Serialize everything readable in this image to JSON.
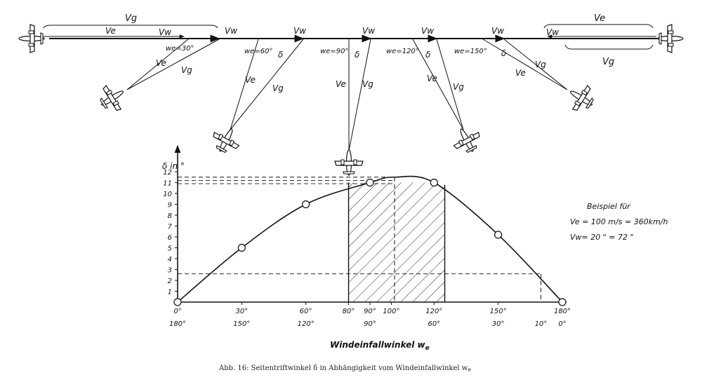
{
  "chart_data": {
    "type": "line",
    "ylabel": "δ in °",
    "xlabel": "Windeinfallwinkel w",
    "xlabel_sub": "e",
    "caption": "Abb. 16: Seitentriftwinkel δ in Abhängigkeit vom Windeinfallwinkel w",
    "caption_sub": "e",
    "xlim": [
      0,
      180
    ],
    "ylim": [
      0,
      12.5
    ],
    "y_ticks": [
      "1",
      "2",
      "3",
      "4",
      "5",
      "6",
      "7",
      "8",
      "9",
      "10",
      "11",
      "12"
    ],
    "x_ticks_top": [
      {
        "v": 0,
        "t": "0°"
      },
      {
        "v": 30,
        "t": "30°"
      },
      {
        "v": 60,
        "t": "60°"
      },
      {
        "v": 80,
        "t": "80°"
      },
      {
        "v": 90,
        "t": "90°"
      },
      {
        "v": 100,
        "t": "100°"
      },
      {
        "v": 120,
        "t": "120°"
      },
      {
        "v": 150,
        "t": "150°"
      },
      {
        "v": 180,
        "t": "180°"
      }
    ],
    "x_ticks_bottom": [
      {
        "v": 0,
        "t": "180°"
      },
      {
        "v": 30,
        "t": "150°"
      },
      {
        "v": 60,
        "t": "120°"
      },
      {
        "v": 90,
        "t": "90°"
      },
      {
        "v": 120,
        "t": "60°"
      },
      {
        "v": 150,
        "t": "30°"
      },
      {
        "v": 170,
        "t": "10°"
      },
      {
        "v": 180,
        "t": "0°"
      }
    ],
    "series": [
      {
        "x": [
          0,
          30,
          60,
          90,
          101.5,
          120,
          150,
          180
        ],
        "y": [
          0,
          5.0,
          9.0,
          11.0,
          11.5,
          11.0,
          6.2,
          0
        ]
      }
    ],
    "markers": [
      {
        "x": 0,
        "y": 0
      },
      {
        "x": 30,
        "y": 5.0
      },
      {
        "x": 60,
        "y": 9.0
      },
      {
        "x": 90,
        "y": 11.0
      },
      {
        "x": 120,
        "y": 11.0
      },
      {
        "x": 150,
        "y": 6.2
      },
      {
        "x": 180,
        "y": 0
      }
    ],
    "hatched_range": [
      80,
      125
    ],
    "ref_lines_h": [
      11.5,
      11.2,
      10.9,
      2.6
    ],
    "ref_lines_v": [
      101.5,
      170
    ],
    "example": {
      "title": "Beispiel für",
      "line1": "Ve = 100 m/s = 360km/h",
      "line2": "Vw= 20  \"  =  72  \""
    }
  },
  "diagram": {
    "angle_labels": [
      "we=30°",
      "we=60°",
      "we=90°",
      "we=120°",
      "we=150°"
    ],
    "vector_labels": {
      "vg": "Vg",
      "ve": "Ve",
      "vw": "Vw",
      "delta": "δ"
    }
  }
}
